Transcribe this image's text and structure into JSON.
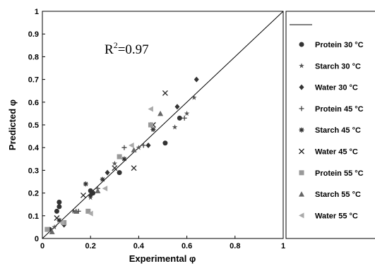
{
  "chart_data": {
    "type": "scatter",
    "xlabel": "Experimental φ",
    "ylabel": "Predicted φ",
    "xlim": [
      0,
      1
    ],
    "ylim": [
      0,
      1
    ],
    "x_ticks": [
      "0",
      "0.2",
      "0.4",
      "0.6",
      "0.8",
      "1"
    ],
    "y_ticks": [
      "0",
      "0.1",
      "0.2",
      "0.3",
      "0.4",
      "0.5",
      "0.6",
      "0.7",
      "0.8",
      "0.9",
      "1"
    ],
    "grid": false,
    "reference_line": {
      "from": [
        0,
        0
      ],
      "to": [
        1,
        1
      ]
    },
    "annotation": {
      "base": "R",
      "sup": "2",
      "rest": "=0.97"
    },
    "legend": {
      "placement": "right",
      "line_sample": true
    },
    "series": [
      {
        "name": "Protein 30 °C",
        "marker": "circle",
        "color": "#333333",
        "points": [
          [
            0.03,
            0.04
          ],
          [
            0.06,
            0.12
          ],
          [
            0.07,
            0.14
          ],
          [
            0.07,
            0.16
          ],
          [
            0.2,
            0.21
          ],
          [
            0.21,
            0.2
          ],
          [
            0.32,
            0.29
          ],
          [
            0.51,
            0.42
          ],
          [
            0.57,
            0.53
          ]
        ]
      },
      {
        "name": "Starch 30 °C",
        "marker": "star",
        "color": "#555555",
        "points": [
          [
            0.05,
            0.05
          ],
          [
            0.13,
            0.12
          ],
          [
            0.2,
            0.18
          ],
          [
            0.3,
            0.33
          ],
          [
            0.4,
            0.4
          ],
          [
            0.55,
            0.49
          ],
          [
            0.6,
            0.55
          ],
          [
            0.63,
            0.62
          ]
        ]
      },
      {
        "name": "Water 30 °C",
        "marker": "diamond",
        "color": "#333333",
        "points": [
          [
            0.09,
            0.06
          ],
          [
            0.2,
            0.19
          ],
          [
            0.27,
            0.29
          ],
          [
            0.44,
            0.41
          ],
          [
            0.56,
            0.58
          ],
          [
            0.64,
            0.7
          ]
        ]
      },
      {
        "name": "Protein 45 °C",
        "marker": "plus",
        "color": "#444444",
        "points": [
          [
            0.08,
            0.07
          ],
          [
            0.15,
            0.12
          ],
          [
            0.23,
            0.22
          ],
          [
            0.34,
            0.4
          ],
          [
            0.42,
            0.41
          ],
          [
            0.59,
            0.53
          ]
        ]
      },
      {
        "name": "Starch 45 °C",
        "marker": "asterisk",
        "color": "#333333",
        "points": [
          [
            0.07,
            0.08
          ],
          [
            0.18,
            0.24
          ],
          [
            0.25,
            0.26
          ],
          [
            0.34,
            0.35
          ],
          [
            0.46,
            0.48
          ]
        ]
      },
      {
        "name": "Water 45 °C",
        "marker": "cross",
        "color": "#222222",
        "points": [
          [
            0.06,
            0.09
          ],
          [
            0.17,
            0.19
          ],
          [
            0.3,
            0.31
          ],
          [
            0.38,
            0.31
          ],
          [
            0.46,
            0.5
          ],
          [
            0.51,
            0.64
          ]
        ]
      },
      {
        "name": "Protein 55 °C",
        "marker": "square",
        "color": "#999999",
        "points": [
          [
            0.02,
            0.04
          ],
          [
            0.09,
            0.07
          ],
          [
            0.19,
            0.12
          ],
          [
            0.32,
            0.36
          ],
          [
            0.45,
            0.5
          ]
        ]
      },
      {
        "name": "Starch 55 °C",
        "marker": "triangle",
        "color": "#666666",
        "points": [
          [
            0.04,
            0.03
          ],
          [
            0.14,
            0.12
          ],
          [
            0.23,
            0.21
          ],
          [
            0.38,
            0.39
          ],
          [
            0.49,
            0.55
          ]
        ]
      },
      {
        "name": "Water 55 °C",
        "marker": "triangle-left",
        "color": "#aaaaaa",
        "points": [
          [
            0.08,
            0.07
          ],
          [
            0.2,
            0.11
          ],
          [
            0.26,
            0.22
          ],
          [
            0.37,
            0.41
          ],
          [
            0.45,
            0.57
          ]
        ]
      }
    ]
  }
}
